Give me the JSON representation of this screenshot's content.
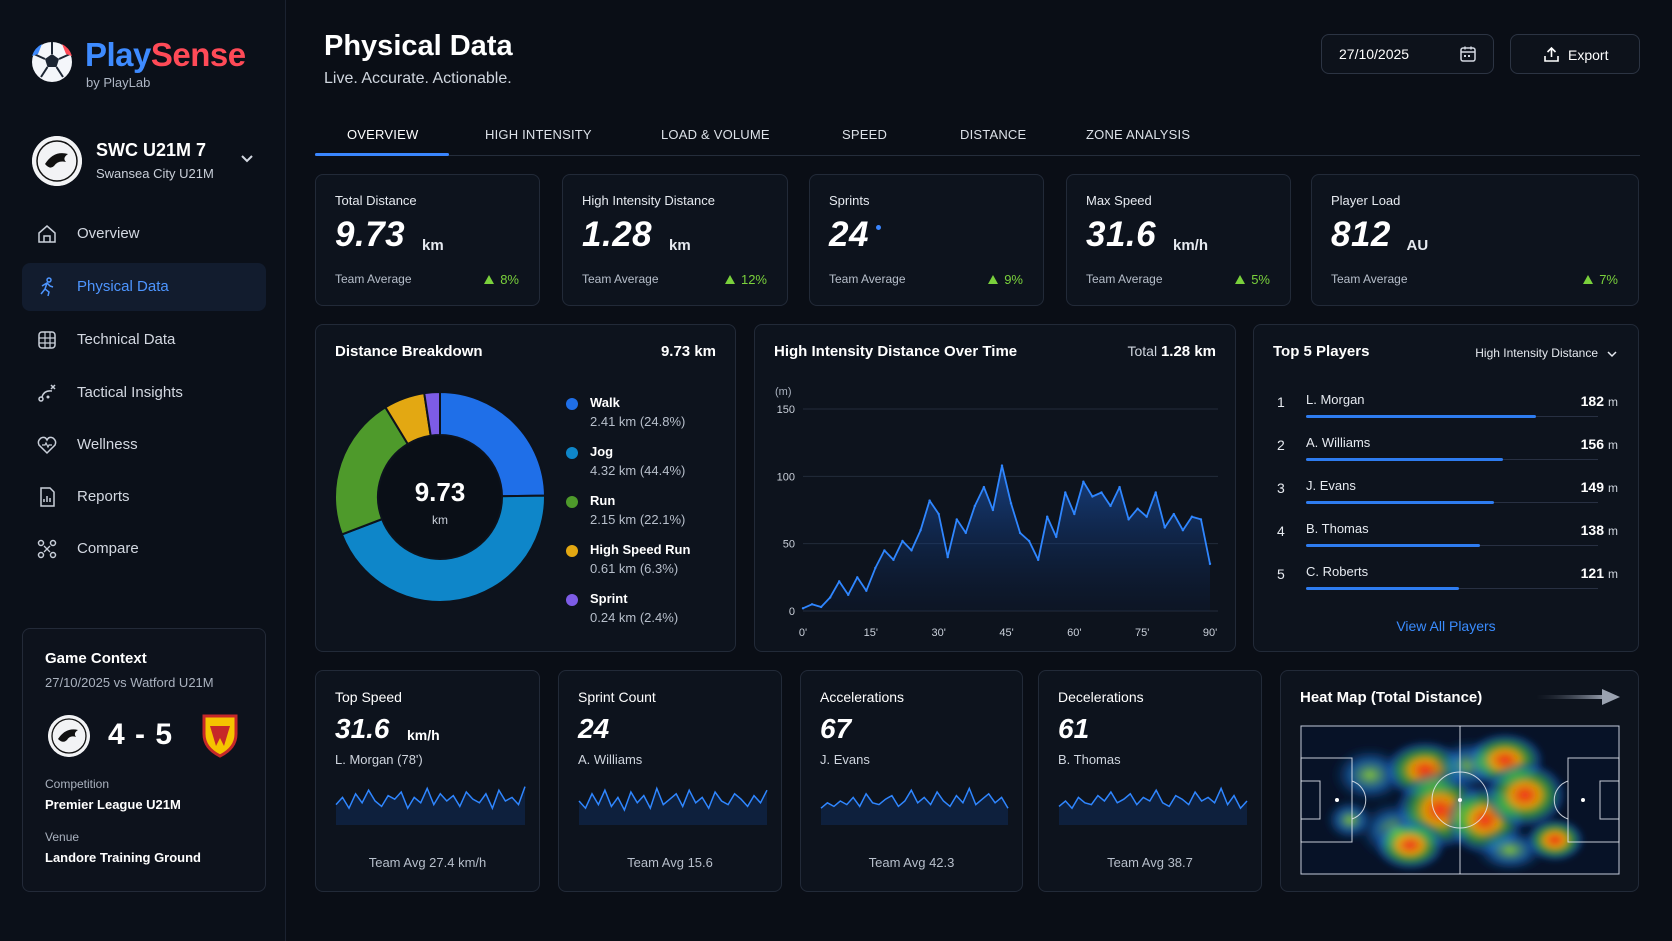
{
  "brand": {
    "name_a": "Play",
    "name_b": "Sense",
    "sub": "by PlayLab"
  },
  "team": {
    "name": "SWC U21M 7",
    "club": "Swansea City U21M"
  },
  "nav": [
    {
      "label": "Overview",
      "icon": "home-icon"
    },
    {
      "label": "Physical Data",
      "icon": "running-icon",
      "active": true
    },
    {
      "label": "Technical Data",
      "icon": "grid-icon"
    },
    {
      "label": "Tactical Insights",
      "icon": "tactics-icon"
    },
    {
      "label": "Wellness",
      "icon": "heart-icon"
    },
    {
      "label": "Reports",
      "icon": "report-icon"
    },
    {
      "label": "Compare",
      "icon": "compare-icon"
    }
  ],
  "context": {
    "title": "Game Context",
    "date": "27/10/2025 vs Watford U21M",
    "score": "4 - 5",
    "competition_label": "Competition",
    "competition": "Premier League U21M",
    "venue_label": "Venue",
    "venue": "Landore Training Ground"
  },
  "header": {
    "title": "Physical Data",
    "subtitle": "Live. Accurate. Actionable.",
    "date": "27/10/2025",
    "export": "Export"
  },
  "tabs": [
    "OVERVIEW",
    "HIGH INTENSITY",
    "LOAD & VOLUME",
    "SPEED",
    "DISTANCE",
    "ZONE ANALYSIS"
  ],
  "kpis": [
    {
      "label": "Total Distance",
      "value": "9.73",
      "unit": "km",
      "avg": "Team Average",
      "trend": "8%"
    },
    {
      "label": "High Intensity Distance",
      "value": "1.28",
      "unit": "km",
      "avg": "Team Average",
      "trend": "12%"
    },
    {
      "label": "Sprints",
      "value": "24",
      "unit": "",
      "avg": "Team Average",
      "trend": "9%"
    },
    {
      "label": "Max Speed",
      "value": "31.6",
      "unit": "km/h",
      "avg": "Team Average",
      "trend": "5%"
    },
    {
      "label": "Player Load",
      "value": "812",
      "unit": "AU",
      "avg": "Team Average",
      "trend": "7%"
    }
  ],
  "breakdown": {
    "title": "Distance Breakdown",
    "total": "9.73 km",
    "center_value": "9.73",
    "center_unit": "km",
    "items": [
      {
        "name": "Walk",
        "detail": "2.41 km (24.8%)",
        "value": 24.8,
        "color": "#1f6fe8"
      },
      {
        "name": "Jog",
        "detail": "4.32 km (44.4%)",
        "value": 44.4,
        "color": "#0e86c9"
      },
      {
        "name": "Run",
        "detail": "2.15 km (22.1%)",
        "value": 22.1,
        "color": "#4e9a2b"
      },
      {
        "name": "High Speed Run",
        "detail": "0.61 km (6.3%)",
        "value": 6.3,
        "color": "#e3a812"
      },
      {
        "name": "Sprint",
        "detail": "0.24 km (2.4%)",
        "value": 2.4,
        "color": "#7d5ce6"
      }
    ]
  },
  "hid": {
    "title": "High Intensity Distance Over Time",
    "total_label": "Total",
    "total_value": "1.28 km",
    "unit_label": "(m)"
  },
  "chart_data": {
    "type": "area",
    "x": [
      0,
      2,
      4,
      6,
      8,
      10,
      12,
      14,
      16,
      18,
      20,
      22,
      24,
      26,
      28,
      30,
      32,
      34,
      36,
      38,
      40,
      42,
      44,
      46,
      48,
      50,
      52,
      54,
      56,
      58,
      60,
      62,
      64,
      66,
      68,
      70,
      72,
      74,
      76,
      78,
      80,
      82,
      84,
      86,
      88,
      90
    ],
    "values": [
      2,
      5,
      3,
      10,
      22,
      12,
      25,
      15,
      32,
      45,
      38,
      52,
      45,
      60,
      82,
      72,
      40,
      68,
      58,
      78,
      92,
      75,
      108,
      80,
      58,
      52,
      38,
      70,
      55,
      88,
      72,
      96,
      85,
      88,
      78,
      92,
      68,
      76,
      70,
      88,
      62,
      72,
      60,
      70,
      68,
      35
    ],
    "x_ticks": [
      "0'",
      "15'",
      "30'",
      "45'",
      "60'",
      "75'",
      "90'"
    ],
    "y_ticks": [
      "0",
      "50",
      "100",
      "150"
    ],
    "ylim": [
      0,
      150
    ],
    "xlim": [
      0,
      90
    ]
  },
  "top5": {
    "title": "Top 5 Players",
    "metric": "High Intensity Distance",
    "unit": "m",
    "players": [
      {
        "rank": "1",
        "name": "L. Morgan",
        "value": 182
      },
      {
        "rank": "2",
        "name": "A. Williams",
        "value": 156
      },
      {
        "rank": "3",
        "name": "J. Evans",
        "value": 149
      },
      {
        "rank": "4",
        "name": "B. Thomas",
        "value": 138
      },
      {
        "rank": "5",
        "name": "C. Roberts",
        "value": 121
      }
    ],
    "link": "View All Players"
  },
  "mini": [
    {
      "label": "Top Speed",
      "value": "31.6",
      "unit": "km/h",
      "sub": "L. Morgan (78')",
      "avg": "Team Avg 27.4 km/h"
    },
    {
      "label": "Sprint Count",
      "value": "24",
      "unit": "",
      "sub": "A. Williams",
      "avg": "Team Avg 15.6"
    },
    {
      "label": "Accelerations",
      "value": "67",
      "unit": "",
      "sub": "J. Evans",
      "avg": "Team Avg 42.3"
    },
    {
      "label": "Decelerations",
      "value": "61",
      "unit": "",
      "sub": "B. Thomas",
      "avg": "Team Avg 38.7"
    }
  ],
  "heatmap": {
    "title": "Heat Map (Total Distance)"
  },
  "colors": {
    "accent": "#3a86ff",
    "positive": "#7ad13c",
    "background": "#0a0e16"
  }
}
